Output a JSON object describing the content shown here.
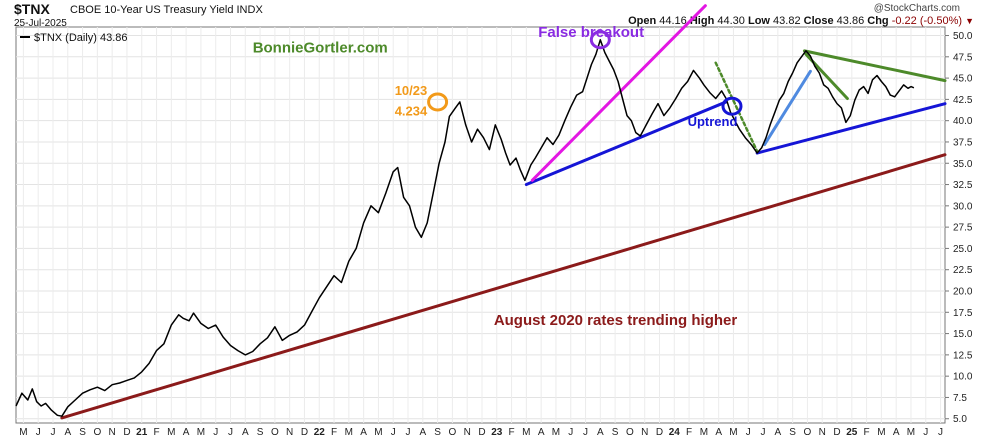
{
  "header": {
    "symbol": "$TNX",
    "description": "CBOE 10-Year US Treasury Yield INDX",
    "date": "25-Jul-2025",
    "open_label": "Open",
    "open": "44.16",
    "high_label": "High",
    "high": "44.30",
    "low_label": "Low",
    "low": "43.82",
    "close_label": "Close",
    "close": "43.86",
    "chg_label": "Chg",
    "chg": "-0.22 (-0.50%)",
    "brand": "@StockCharts.com",
    "chg_color": "#8b0000"
  },
  "chart_data": {
    "type": "line",
    "title": "$TNX CBOE 10-Year US Treasury Yield INDX",
    "legend": "$TNX (Daily) 43.86",
    "ylim": [
      4.5,
      51
    ],
    "y_ticks": [
      5.0,
      7.5,
      10.0,
      12.5,
      15.0,
      17.5,
      20.0,
      22.5,
      25.0,
      27.5,
      30.0,
      32.5,
      35.0,
      37.5,
      40.0,
      42.5,
      45.0,
      47.5,
      50.0
    ],
    "y_tick_labels": [
      "5.0",
      "7.5",
      "10.0",
      "12.5",
      "15.0",
      "17.5",
      "20.0",
      "22.5",
      "25.0",
      "27.5",
      "30.0",
      "32.5",
      "35.0",
      "37.5",
      "40.0",
      "42.5",
      "45.0",
      "47.5",
      "50.0"
    ],
    "x_range_months": [
      0,
      62.8
    ],
    "x_ticks": [
      "M",
      "J",
      "J",
      "A",
      "S",
      "O",
      "N",
      "D",
      "21",
      "F",
      "M",
      "A",
      "M",
      "J",
      "J",
      "A",
      "S",
      "O",
      "N",
      "D",
      "22",
      "F",
      "M",
      "A",
      "M",
      "J",
      "J",
      "A",
      "S",
      "O",
      "N",
      "D",
      "23",
      "F",
      "M",
      "A",
      "M",
      "J",
      "J",
      "A",
      "S",
      "O",
      "N",
      "D",
      "24",
      "F",
      "M",
      "A",
      "M",
      "J",
      "J",
      "A",
      "S",
      "O",
      "N",
      "D",
      "25",
      "F",
      "M",
      "A",
      "M",
      "J",
      "J"
    ],
    "series": [
      {
        "name": "$TNX (Daily)",
        "color": "#000000",
        "points": [
          [
            0.0,
            6.5
          ],
          [
            0.4,
            8.0
          ],
          [
            0.8,
            7.2
          ],
          [
            1.1,
            8.5
          ],
          [
            1.4,
            7.0
          ],
          [
            1.7,
            6.5
          ],
          [
            2.0,
            6.8
          ],
          [
            2.4,
            6.0
          ],
          [
            2.8,
            5.4
          ],
          [
            3.1,
            5.3
          ],
          [
            3.5,
            6.4
          ],
          [
            4.0,
            7.2
          ],
          [
            4.5,
            8.0
          ],
          [
            5.0,
            8.4
          ],
          [
            5.5,
            8.7
          ],
          [
            6.0,
            8.3
          ],
          [
            6.5,
            9.0
          ],
          [
            7.0,
            9.2
          ],
          [
            7.5,
            9.5
          ],
          [
            8.0,
            9.8
          ],
          [
            8.5,
            10.5
          ],
          [
            9.0,
            11.5
          ],
          [
            9.5,
            13.0
          ],
          [
            10.0,
            13.8
          ],
          [
            10.5,
            16.0
          ],
          [
            11.0,
            17.2
          ],
          [
            11.3,
            16.8
          ],
          [
            11.7,
            16.5
          ],
          [
            12.0,
            17.4
          ],
          [
            12.5,
            16.2
          ],
          [
            13.0,
            15.6
          ],
          [
            13.5,
            16.0
          ],
          [
            14.0,
            14.6
          ],
          [
            14.5,
            13.6
          ],
          [
            15.0,
            13.0
          ],
          [
            15.5,
            12.5
          ],
          [
            16.0,
            12.9
          ],
          [
            16.5,
            13.8
          ],
          [
            17.0,
            14.5
          ],
          [
            17.5,
            15.8
          ],
          [
            18.0,
            14.2
          ],
          [
            18.5,
            14.8
          ],
          [
            19.0,
            15.2
          ],
          [
            19.5,
            16.0
          ],
          [
            20.0,
            17.6
          ],
          [
            20.5,
            19.2
          ],
          [
            21.0,
            20.5
          ],
          [
            21.5,
            21.8
          ],
          [
            22.0,
            21.0
          ],
          [
            22.5,
            23.5
          ],
          [
            23.0,
            25.0
          ],
          [
            23.5,
            28.0
          ],
          [
            24.0,
            30.0
          ],
          [
            24.5,
            29.2
          ],
          [
            25.0,
            31.5
          ],
          [
            25.5,
            34.0
          ],
          [
            25.8,
            34.5
          ],
          [
            26.2,
            31.0
          ],
          [
            26.6,
            30.0
          ],
          [
            27.0,
            27.5
          ],
          [
            27.4,
            26.3
          ],
          [
            27.8,
            28.0
          ],
          [
            28.2,
            31.5
          ],
          [
            28.6,
            35.0
          ],
          [
            29.0,
            37.5
          ],
          [
            29.3,
            40.5
          ],
          [
            29.7,
            41.5
          ],
          [
            30.0,
            42.2
          ],
          [
            30.4,
            39.5
          ],
          [
            30.8,
            37.5
          ],
          [
            31.2,
            39.0
          ],
          [
            31.6,
            38.0
          ],
          [
            32.0,
            36.6
          ],
          [
            32.4,
            39.5
          ],
          [
            32.8,
            37.8
          ],
          [
            33.1,
            36.2
          ],
          [
            33.4,
            34.8
          ],
          [
            33.8,
            35.6
          ],
          [
            34.1,
            34.2
          ],
          [
            34.4,
            33.0
          ],
          [
            34.8,
            34.8
          ],
          [
            35.1,
            35.6
          ],
          [
            35.5,
            36.8
          ],
          [
            35.9,
            38.0
          ],
          [
            36.3,
            37.2
          ],
          [
            36.7,
            38.3
          ],
          [
            37.1,
            40.0
          ],
          [
            37.5,
            41.6
          ],
          [
            37.9,
            43.0
          ],
          [
            38.3,
            43.4
          ],
          [
            38.6,
            45.0
          ],
          [
            38.9,
            46.6
          ],
          [
            39.2,
            47.8
          ],
          [
            39.5,
            49.5
          ],
          [
            39.8,
            48.0
          ],
          [
            40.1,
            47.0
          ],
          [
            40.4,
            46.0
          ],
          [
            40.7,
            44.6
          ],
          [
            41.0,
            42.6
          ],
          [
            41.3,
            40.6
          ],
          [
            41.6,
            40.0
          ],
          [
            41.9,
            38.6
          ],
          [
            42.2,
            38.2
          ],
          [
            42.6,
            39.5
          ],
          [
            43.0,
            40.8
          ],
          [
            43.4,
            42.0
          ],
          [
            43.8,
            40.6
          ],
          [
            44.2,
            41.5
          ],
          [
            44.6,
            42.6
          ],
          [
            45.0,
            43.8
          ],
          [
            45.4,
            44.6
          ],
          [
            45.8,
            45.9
          ],
          [
            46.2,
            45.0
          ],
          [
            46.5,
            44.2
          ],
          [
            46.9,
            43.3
          ],
          [
            47.3,
            42.6
          ],
          [
            47.7,
            43.5
          ],
          [
            48.0,
            42.6
          ],
          [
            48.3,
            41.0
          ],
          [
            48.6,
            40.0
          ],
          [
            48.9,
            39.0
          ],
          [
            49.3,
            38.0
          ],
          [
            49.7,
            37.2
          ],
          [
            50.1,
            36.2
          ],
          [
            50.4,
            36.8
          ],
          [
            50.7,
            38.0
          ],
          [
            51.0,
            39.6
          ],
          [
            51.3,
            41.0
          ],
          [
            51.6,
            42.4
          ],
          [
            51.9,
            43.2
          ],
          [
            52.2,
            44.6
          ],
          [
            52.5,
            45.6
          ],
          [
            52.8,
            46.8
          ],
          [
            53.1,
            47.5
          ],
          [
            53.4,
            48.2
          ],
          [
            53.7,
            47.6
          ],
          [
            54.0,
            46.4
          ],
          [
            54.3,
            45.6
          ],
          [
            54.6,
            44.2
          ],
          [
            54.9,
            43.8
          ],
          [
            55.2,
            42.8
          ],
          [
            55.5,
            42.0
          ],
          [
            55.8,
            41.5
          ],
          [
            56.1,
            39.8
          ],
          [
            56.4,
            40.6
          ],
          [
            56.7,
            42.4
          ],
          [
            57.0,
            43.6
          ],
          [
            57.3,
            44.0
          ],
          [
            57.6,
            43.2
          ],
          [
            57.9,
            44.8
          ],
          [
            58.2,
            45.3
          ],
          [
            58.5,
            44.6
          ],
          [
            58.8,
            44.0
          ],
          [
            59.1,
            43.0
          ],
          [
            59.4,
            42.8
          ],
          [
            59.7,
            43.5
          ],
          [
            60.0,
            44.2
          ],
          [
            60.3,
            43.8
          ],
          [
            60.5,
            44.0
          ],
          [
            60.7,
            43.86
          ]
        ]
      }
    ],
    "trendlines": [
      {
        "name": "August 2020 rates trending higher",
        "color": "#8b1a1a",
        "from": [
          3.1,
          5.1
        ],
        "to": [
          62.8,
          36.0
        ]
      },
      {
        "name": "Uptrend",
        "color": "#1515d6",
        "from": [
          34.5,
          32.5
        ],
        "to": [
          48.0,
          42.2
        ]
      },
      {
        "name": "Lower uptrend",
        "color": "#1515d6",
        "from": [
          50.1,
          36.2
        ],
        "to": [
          62.8,
          42.0
        ]
      },
      {
        "name": "False breakout line",
        "color": "#e317e3",
        "from": [
          34.9,
          33.0
        ],
        "to": [
          46.6,
          53.5
        ]
      },
      {
        "name": "Short uptrend",
        "color": "#4f8ae0",
        "from": [
          50.6,
          37.2
        ],
        "to": [
          53.7,
          45.8
        ]
      },
      {
        "name": "Green resistance upper",
        "color": "#4d8a2a",
        "from": [
          53.3,
          48.2
        ],
        "to": [
          62.8,
          44.7
        ]
      },
      {
        "name": "Green resistance lower",
        "color": "#4d8a2a",
        "from": [
          53.4,
          47.8
        ],
        "to": [
          56.2,
          42.6
        ]
      },
      {
        "name": "Green dotted",
        "color": "#4d8a2a",
        "from": [
          47.3,
          46.8
        ],
        "to": [
          50.1,
          36.4
        ]
      }
    ],
    "circles": [
      {
        "name": "False breakout marker",
        "color": "#8a2be2",
        "at": [
          39.5,
          49.5
        ]
      },
      {
        "name": "October 2023 high marker",
        "color": "#f29a1a",
        "at": [
          28.5,
          42.2
        ]
      },
      {
        "name": "Breakdown marker",
        "color": "#1515d6",
        "at": [
          48.4,
          41.7
        ]
      }
    ],
    "annotations": [
      {
        "text": "BonnieGortler.com",
        "color": "#4d8a2a",
        "at": [
          16.0,
          48.0
        ]
      },
      {
        "text": "False breakout",
        "color": "#8a2be2",
        "at": [
          35.3,
          49.8
        ]
      },
      {
        "text": "10/23",
        "color": "#f29a1a",
        "at": [
          25.6,
          43.0
        ]
      },
      {
        "text": "4.234",
        "color": "#f29a1a",
        "at": [
          25.6,
          40.6
        ]
      },
      {
        "text": "Uptrend",
        "color": "#1515d6",
        "at": [
          45.4,
          39.4
        ]
      },
      {
        "text": "August 2020 rates trending higher",
        "color": "#8b1a1a",
        "at": [
          32.3,
          16.0
        ]
      }
    ]
  }
}
